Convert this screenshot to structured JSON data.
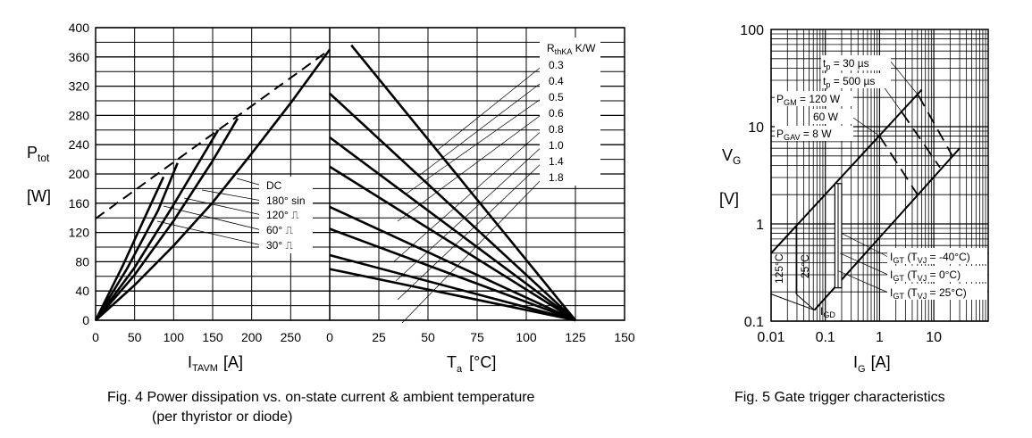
{
  "chart_data": [
    {
      "type": "line",
      "title": "Fig. 4  Power dissipation vs. on-state current & ambient temperature",
      "subtitle": "(per thyristor or diode)",
      "ylabel": "P",
      "ylabel_sub": "tot",
      "yunit": "[W]",
      "ylim": [
        0,
        400
      ],
      "yticks": [
        "0",
        "40",
        "80",
        "120",
        "160",
        "200",
        "240",
        "280",
        "320",
        "360",
        "400"
      ],
      "grid": true,
      "left": {
        "xlabel": "I",
        "xlabel_sub": "TAVM",
        "xunit": "[A]",
        "xlim": [
          0,
          300
        ],
        "xticks": [
          "0",
          "50",
          "100",
          "150",
          "200",
          "250"
        ],
        "limit_line": {
          "style": "dashed",
          "points": [
            [
              0,
              139
            ],
            [
              300,
              370
            ]
          ]
        },
        "series": [
          {
            "name": "DC",
            "points": [
              [
                0,
                0
              ],
              [
                50,
                48
              ],
              [
                100,
                102
              ],
              [
                150,
                161
              ],
              [
                200,
                228
              ],
              [
                250,
                297
              ],
              [
                300,
                370
              ]
            ]
          },
          {
            "name": "180° sin",
            "points": [
              [
                0,
                0
              ],
              [
                50,
                62
              ],
              [
                100,
                136
              ],
              [
                150,
                218
              ],
              [
                182,
                276
              ]
            ]
          },
          {
            "name": "120° ⎍",
            "points": [
              [
                0,
                0
              ],
              [
                50,
                72
              ],
              [
                100,
                158
              ],
              [
                157,
                260
              ]
            ]
          },
          {
            "name": "60° ⎍",
            "points": [
              [
                0,
                0
              ],
              [
                40,
                70
              ],
              [
                80,
                150
              ],
              [
                105,
                215
              ]
            ]
          },
          {
            "name": "30° ⎍",
            "points": [
              [
                0,
                0
              ],
              [
                35,
                75
              ],
              [
                65,
                145
              ],
              [
                87,
                196
              ]
            ]
          }
        ]
      },
      "right": {
        "xlabel": "T",
        "xlabel_sub": "a",
        "xunit": "[°C]",
        "xlim": [
          0,
          150
        ],
        "xticks": [
          "0",
          "25",
          "50",
          "75",
          "100",
          "125",
          "150"
        ],
        "legend_title": "R",
        "legend_title_sub": "thKA",
        "legend_unit": "K/W",
        "legend_placement": "top-right",
        "series": [
          {
            "name": "0.3",
            "points": [
              [
                11,
                376
              ],
              [
                125,
                0
              ]
            ]
          },
          {
            "name": "0.4",
            "points": [
              [
                0,
                310
              ],
              [
                125,
                0
              ]
            ]
          },
          {
            "name": "0.5",
            "points": [
              [
                0,
                250
              ],
              [
                125,
                0
              ]
            ]
          },
          {
            "name": "0.6",
            "points": [
              [
                0,
                210
              ],
              [
                125,
                0
              ]
            ]
          },
          {
            "name": "0.8",
            "points": [
              [
                0,
                155
              ],
              [
                125,
                0
              ]
            ]
          },
          {
            "name": "1.0",
            "points": [
              [
                0,
                125
              ],
              [
                125,
                0
              ]
            ]
          },
          {
            "name": "1.4",
            "points": [
              [
                0,
                89
              ],
              [
                125,
                0
              ]
            ]
          },
          {
            "name": "1.8",
            "points": [
              [
                0,
                70
              ],
              [
                125,
                0
              ]
            ]
          }
        ]
      }
    },
    {
      "type": "line",
      "title": "Fig. 5  Gate trigger characteristics",
      "xlabel": "I",
      "xlabel_sub": "G",
      "xunit": "[A]",
      "ylabel": "V",
      "ylabel_sub": "G",
      "yunit": "[V]",
      "xscale": "log",
      "yscale": "log",
      "xlim": [
        0.01,
        100
      ],
      "ylim": [
        0.1,
        100
      ],
      "xticks": [
        "0.01",
        "0.1",
        "1",
        "10"
      ],
      "yticks": [
        "0.1",
        "1",
        "10",
        "100"
      ],
      "grid": true,
      "boundaries": [
        {
          "points": [
            [
              0.01,
              0.5
            ],
            [
              6,
              24
            ]
          ]
        },
        {
          "points": [
            [
              0.063,
              0.13
            ],
            [
              30,
              6
            ]
          ]
        }
      ],
      "power_limits": [
        {
          "label": "t",
          "label_sub": "p",
          "label_rest": " =   30 µs",
          "style": "dashed",
          "points": [
            [
              5.2,
              21
            ],
            [
              22,
              5
            ]
          ]
        },
        {
          "label": "t",
          "label_sub": "p",
          "label_rest": " = 500 µs",
          "style": "dashed",
          "points": [
            [
              2.6,
              14
            ],
            [
              13,
              3.8
            ]
          ]
        },
        {
          "label": "P",
          "label_sub": "GM",
          "label_rest": " = 120 W"
        },
        {
          "label": "60 W"
        },
        {
          "label": "P",
          "label_sub": "GAV",
          "label_rest": " =   8 W",
          "style": "dashed",
          "points": [
            [
              1,
              8
            ],
            [
              5,
              2
            ]
          ]
        }
      ],
      "annotations": {
        "t125": "125°C",
        "t25": "25°C",
        "igd": "I",
        "igd_sub": "GD",
        "igt": [
          {
            "a": "I",
            "sub": "GT",
            "b": " (T",
            "sub2": "VJ",
            "c": " = -40°C)"
          },
          {
            "a": "I",
            "sub": "GT",
            "b": " (T",
            "sub2": "VJ",
            "c": " =    0°C)"
          },
          {
            "a": "I",
            "sub": "GT",
            "b": " (T",
            "sub2": "VJ",
            "c": " = 25°C)"
          }
        ]
      }
    }
  ]
}
